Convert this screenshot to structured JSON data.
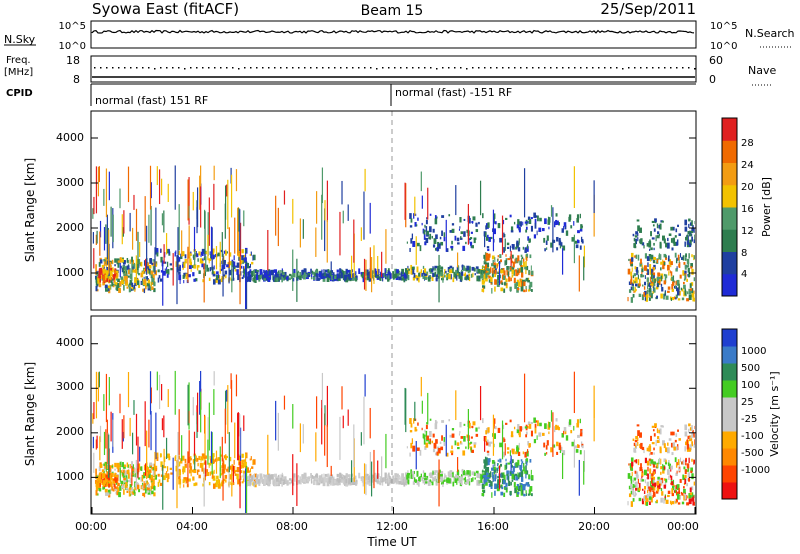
{
  "header": {
    "station": "Syowa East (fitACF)",
    "beam": "Beam 15",
    "date": "25/Sep/2011"
  },
  "sky_panel": {
    "left_label": "N.Sky",
    "left_ticks": [
      "10^5",
      "10^0"
    ],
    "right_ticks": [
      "10^5",
      "10^0"
    ],
    "right_label": "N.Search"
  },
  "freq_panel": {
    "left_label_1": "Freq.",
    "left_label_2": "[MHz]",
    "left_ticks": [
      "18",
      "8"
    ],
    "right_ticks": [
      "60",
      "0"
    ],
    "right_label": "Nave"
  },
  "cpid_panel": {
    "label": "CPID",
    "mode_1": "normal (fast) 151 RF",
    "mode_2": "normal (fast) -151 RF"
  },
  "colors": {
    "power_scale": [
      "#1f2bd6",
      "#1f3fa0",
      "#2e7d4f",
      "#4f9a6a",
      "#f2c200",
      "#f39c12",
      "#f06a00",
      "#e02020"
    ],
    "velocity_scale": [
      "#ee1111",
      "#ff4400",
      "#ff8800",
      "#ffaa00",
      "#c8c8c8",
      "#c8c8c8",
      "#44cc22",
      "#2e8b57",
      "#3a7bc8",
      "#1f3fd0"
    ]
  },
  "chart_data": [
    {
      "type": "heatmap",
      "quantity": "power",
      "xlabel": "",
      "ylabel": "Slant Range [km]",
      "ylim": [
        200,
        4600
      ],
      "xlim": [
        0,
        24
      ],
      "y_ticks": [
        "1000",
        "2000",
        "3000",
        "4000"
      ],
      "colorbar": {
        "label": "Power [dB]",
        "range": [
          0,
          32
        ],
        "ticks": [
          "4",
          "8",
          "12",
          "16",
          "20",
          "24",
          "28"
        ]
      }
    },
    {
      "type": "heatmap",
      "quantity": "velocity",
      "xlabel": "Time UT",
      "ylabel": "Slant Range [km]",
      "ylim": [
        200,
        4600
      ],
      "xlim": [
        0,
        24
      ],
      "x_ticks": [
        "00:00",
        "04:00",
        "08:00",
        "12:00",
        "16:00",
        "20:00",
        "00:00"
      ],
      "y_ticks": [
        "1000",
        "2000",
        "3000",
        "4000"
      ],
      "colorbar": {
        "label": "Velocity [m s⁻¹]",
        "ticks": [
          "1000",
          "500",
          "100",
          "25",
          "-25",
          "-100",
          "-500",
          "-1000"
        ]
      }
    }
  ]
}
